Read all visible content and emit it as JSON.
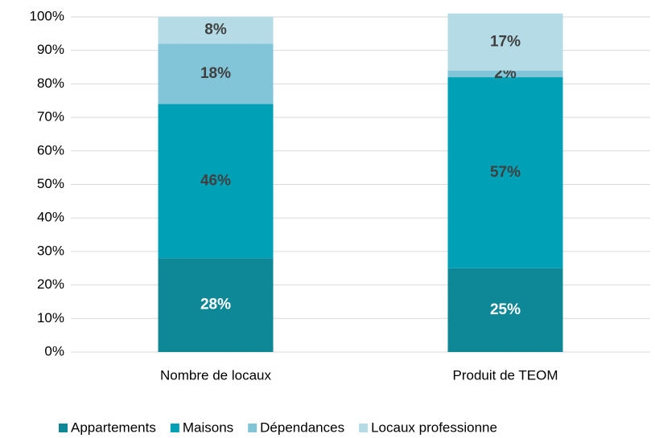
{
  "chart_data": {
    "type": "stacked_bar",
    "categories": [
      "Nombre de locaux",
      "Produit de TEOM"
    ],
    "series": [
      {
        "name": "Appartements",
        "color": "#0e8796",
        "values": [
          28,
          25
        ],
        "value_labels": [
          "28%",
          "25%"
        ]
      },
      {
        "name": "Maisons",
        "color": "#00a0b6",
        "values": [
          46,
          57
        ],
        "value_labels": [
          "46%",
          "57%"
        ]
      },
      {
        "name": "Dépendances",
        "color": "#82c5d8",
        "values": [
          18,
          2
        ],
        "value_labels": [
          "18%",
          "2%"
        ]
      },
      {
        "name": "Locaux professionne",
        "color": "#b5dce6",
        "values": [
          8,
          17
        ],
        "value_labels": [
          "8%",
          "17%"
        ]
      }
    ],
    "ylim": [
      0,
      100
    ],
    "yticks": [
      {
        "value": 0,
        "label": "0%"
      },
      {
        "value": 10,
        "label": "10%"
      },
      {
        "value": 20,
        "label": "20%"
      },
      {
        "value": 30,
        "label": "30%"
      },
      {
        "value": 40,
        "label": "40%"
      },
      {
        "value": 50,
        "label": "50%"
      },
      {
        "value": 60,
        "label": "60%"
      },
      {
        "value": 70,
        "label": "70%"
      },
      {
        "value": 80,
        "label": "80%"
      },
      {
        "value": 90,
        "label": "90%"
      },
      {
        "value": 100,
        "label": "100%"
      }
    ],
    "grid": true,
    "legend": "bottom"
  }
}
